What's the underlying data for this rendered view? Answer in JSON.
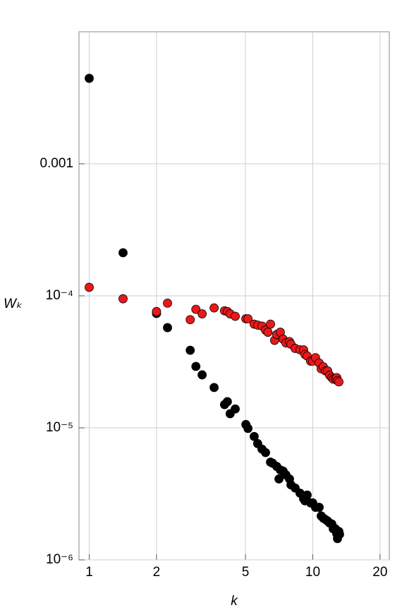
{
  "chart_data": {
    "type": "scatter",
    "x_label": "k",
    "y_label": "Wₖ",
    "xscale": "log",
    "yscale": "log",
    "grid": true,
    "xlim": [
      0.9,
      22
    ],
    "xticks": [
      1,
      2,
      5,
      10,
      20
    ],
    "ylim": [
      1e-06,
      0.01
    ],
    "yticks": [
      {
        "value": 1e-06,
        "label": "10⁻⁶"
      },
      {
        "value": 1e-05,
        "label": "10⁻⁵"
      },
      {
        "value": 0.0001,
        "label": "10⁻⁴"
      },
      0.001
    ],
    "series": [
      {
        "color": "#000000",
        "x": [
          1.0,
          1.417,
          2.0,
          2.24,
          2.83,
          3.0,
          3.2,
          3.62,
          4.03,
          4.15,
          4.27,
          4.5,
          5.02,
          5.13,
          5.47,
          5.67,
          5.93,
          6.15,
          6.47,
          6.61,
          6.9,
          7.06,
          7.16,
          7.37,
          7.59,
          7.87,
          7.99,
          8.34,
          8.77,
          9.1,
          9.23,
          9.44,
          9.78,
          10.0,
          10.29,
          10.68,
          10.91,
          11.15,
          11.4,
          11.65,
          11.9,
          12.17,
          12.35,
          12.62,
          12.8,
          12.9,
          13.09,
          13.18
        ],
        "values": [
          0.00444,
          0.000212,
          7.35e-05,
          5.74e-05,
          3.87e-05,
          2.92e-05,
          2.52e-05,
          2.02e-05,
          1.5e-05,
          1.58e-05,
          1.28e-05,
          1.39e-05,
          1.06e-05,
          9.9e-06,
          8.6e-06,
          7.6e-06,
          6.9e-06,
          6.5e-06,
          5.5e-06,
          5.4e-06,
          5.1e-06,
          4.1e-06,
          4.8e-06,
          4.7e-06,
          4.4e-06,
          4.1e-06,
          3.7e-06,
          3.5e-06,
          3.2e-06,
          2.9e-06,
          2.8e-06,
          3.1e-06,
          2.7e-06,
          2.7e-06,
          2.5e-06,
          2.5e-06,
          2.15e-06,
          2.07e-06,
          2.02e-06,
          1.97e-06,
          1.9e-06,
          1.87e-06,
          1.72e-06,
          1.72e-06,
          1.58e-06,
          1.45e-06,
          1.64e-06,
          1.56e-06
        ]
      },
      {
        "color": "#e8191a",
        "x": [
          1.0,
          1.417,
          2.0,
          2.24,
          2.83,
          3.0,
          3.2,
          3.62,
          4.03,
          4.15,
          4.27,
          4.5,
          5.02,
          5.13,
          5.47,
          5.67,
          5.93,
          6.15,
          6.3,
          6.47,
          6.75,
          6.9,
          7.16,
          7.37,
          7.59,
          7.87,
          7.99,
          8.34,
          8.77,
          9.1,
          9.23,
          9.44,
          9.78,
          10.0,
          10.29,
          10.68,
          10.91,
          11.15,
          11.4,
          11.65,
          11.9,
          12.17,
          12.35,
          12.62,
          12.8,
          12.9,
          13.09
        ],
        "values": [
          0.000116,
          9.5e-05,
          7.6e-05,
          8.8e-05,
          6.6e-05,
          7.9e-05,
          7.3e-05,
          8.1e-05,
          7.7e-05,
          7.6e-05,
          7.3e-05,
          7e-05,
          6.7e-05,
          6.7e-05,
          6.1e-05,
          6e-05,
          5.9e-05,
          5.5e-05,
          5.3e-05,
          6.1e-05,
          4.6e-05,
          5.1e-05,
          5.3e-05,
          4.7e-05,
          4.4e-05,
          4.5e-05,
          4.3e-05,
          4e-05,
          3.9e-05,
          3.9e-05,
          3.6e-05,
          3.5e-05,
          3.2e-05,
          3.2e-05,
          3.4e-05,
          3.1e-05,
          2.8e-05,
          2.9e-05,
          2.7e-05,
          2.7e-05,
          2.5e-05,
          2.4e-05,
          2.34e-05,
          2.37e-05,
          2.4e-05,
          2.28e-05,
          2.23e-05
        ]
      }
    ]
  }
}
